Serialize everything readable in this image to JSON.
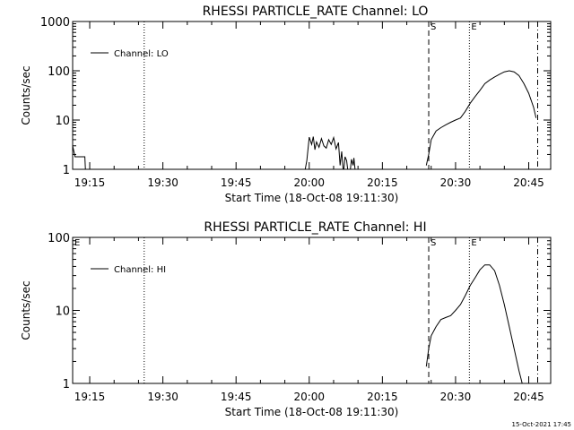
{
  "timestamp": "15-Oct-2021 17:45",
  "chart_data": [
    {
      "type": "line",
      "title": "RHESSI PARTICLE_RATE Channel: LO",
      "xlabel": "Start Time (18-Oct-08 19:11:30)",
      "ylabel": "Counts/sec",
      "yscale": "log",
      "xlim": [
        "19:11:30",
        "20:49:30"
      ],
      "ylim": [
        1,
        1000
      ],
      "x_ticks": [
        "19:15",
        "19:30",
        "19:45",
        "20:00",
        "20:15",
        "20:30",
        "20:45"
      ],
      "y_ticks": [
        "1",
        "10",
        "100",
        "1000"
      ],
      "legend": {
        "position": "top-left",
        "entries": [
          "Channel: LO"
        ]
      },
      "markers": [
        {
          "label": "",
          "time": "19:26:10",
          "style": "dotted"
        },
        {
          "label": "S",
          "time": "20:24:30",
          "style": "dashed"
        },
        {
          "label": "E",
          "time": "20:32:50",
          "style": "dotted"
        },
        {
          "label": "",
          "time": "20:46:50",
          "style": "dashdot"
        }
      ],
      "series": [
        {
          "name": "Channel: LO",
          "segments": [
            {
              "x": [
                "19:11:30",
                "19:12:00",
                "19:12:15",
                "19:13:30",
                "19:14:00",
                "19:14:10"
              ],
              "y": [
                3,
                1.8,
                1.8,
                1.8,
                1.8,
                0.8
              ]
            },
            {
              "x": [
                "19:59:00",
                "19:59:30",
                "20:00:00",
                "20:00:30",
                "20:00:50",
                "20:01:10",
                "20:01:30",
                "20:02:00",
                "20:02:30",
                "20:03:00",
                "20:03:30",
                "20:04:00",
                "20:04:30",
                "20:05:00",
                "20:05:30",
                "20:06:00",
                "20:06:20",
                "20:06:40",
                "20:07:00",
                "20:07:20",
                "20:07:40",
                "20:08:00"
              ],
              "y": [
                0.8,
                1.5,
                4.5,
                3.2,
                4.6,
                2.5,
                3.6,
                2.8,
                4.2,
                3.0,
                2.7,
                4.0,
                3.2,
                4.4,
                2.6,
                3.5,
                1.2,
                2.3,
                0.8,
                1.8,
                1.5,
                0.8
              ]
            },
            {
              "x": [
                "20:08:20",
                "20:08:40",
                "20:09:00",
                "20:09:10",
                "20:09:30"
              ],
              "y": [
                0.8,
                1.6,
                1.2,
                1.7,
                0.8
              ]
            },
            {
              "x": [
                "20:24:00",
                "20:24:30",
                "20:25:00",
                "20:26:00",
                "20:27:00",
                "20:28:00",
                "20:29:00",
                "20:30:00",
                "20:31:00",
                "20:32:00",
                "20:33:00",
                "20:34:00",
                "20:35:00",
                "20:36:00",
                "20:37:00",
                "20:38:00",
                "20:39:00",
                "20:40:00",
                "20:41:00",
                "20:42:00",
                "20:43:00",
                "20:44:00",
                "20:45:00",
                "20:46:00",
                "20:46:30"
              ],
              "y": [
                1.2,
                2,
                4,
                6,
                7,
                8,
                9,
                10,
                11,
                15,
                22,
                30,
                40,
                55,
                65,
                75,
                85,
                95,
                100,
                95,
                80,
                55,
                35,
                18,
                11
              ]
            }
          ]
        }
      ]
    },
    {
      "type": "line",
      "title": "RHESSI PARTICLE_RATE Channel: HI",
      "xlabel": "Start Time (18-Oct-08 19:11:30)",
      "ylabel": "Counts/sec",
      "yscale": "log",
      "xlim": [
        "19:11:30",
        "20:49:30"
      ],
      "ylim": [
        1,
        100
      ],
      "x_ticks": [
        "19:15",
        "19:30",
        "19:45",
        "20:00",
        "20:15",
        "20:30",
        "20:45"
      ],
      "y_ticks": [
        "1",
        "10",
        "100"
      ],
      "legend": {
        "position": "top-left",
        "entries": [
          "Channel: HI"
        ]
      },
      "markers": [
        {
          "label": "",
          "time": "19:26:10",
          "style": "dotted"
        },
        {
          "label": "S",
          "time": "20:24:30",
          "style": "dashed"
        },
        {
          "label": "E",
          "time": "20:32:50",
          "style": "dotted"
        },
        {
          "label": "",
          "time": "20:46:50",
          "style": "dashdot"
        }
      ],
      "corner_label": "E",
      "series": [
        {
          "name": "Channel: HI",
          "segments": [
            {
              "x": [
                "20:24:00",
                "20:24:30",
                "20:25:00",
                "20:26:00",
                "20:27:00",
                "20:28:00",
                "20:29:00",
                "20:30:00",
                "20:31:00",
                "20:32:00",
                "20:33:00",
                "20:34:00",
                "20:35:00",
                "20:36:00",
                "20:37:00",
                "20:38:00",
                "20:39:00",
                "20:40:00",
                "20:41:00",
                "20:42:00",
                "20:43:00",
                "20:43:30",
                "20:44:00"
              ],
              "y": [
                1.7,
                3,
                4.5,
                6,
                7.5,
                8,
                8.5,
                10,
                12,
                16,
                22,
                28,
                36,
                42,
                42,
                35,
                22,
                12,
                6,
                3,
                1.5,
                1.1,
                0.8
              ]
            }
          ]
        }
      ]
    }
  ]
}
